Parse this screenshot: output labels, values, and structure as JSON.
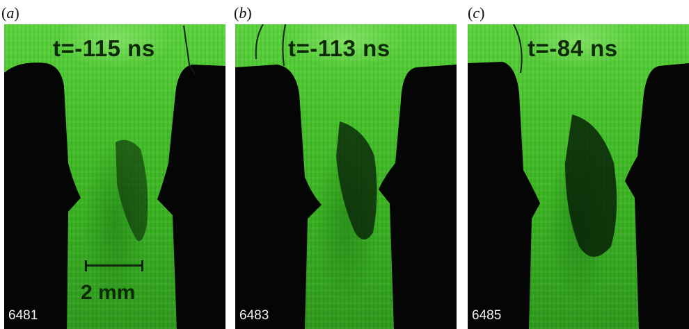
{
  "panels": [
    {
      "label_letter": "a",
      "time": "t=-115 ns",
      "shot": "6481"
    },
    {
      "label_letter": "b",
      "time": "t=-113 ns",
      "shot": "6483"
    },
    {
      "label_letter": "c",
      "time": "t=-84 ns",
      "shot": "6485"
    }
  ],
  "scale": {
    "text": "2 mm"
  },
  "colors": {
    "background_green": "#47c22b",
    "electrode_black": "#050505",
    "label_dark": "#0f2a0b"
  }
}
